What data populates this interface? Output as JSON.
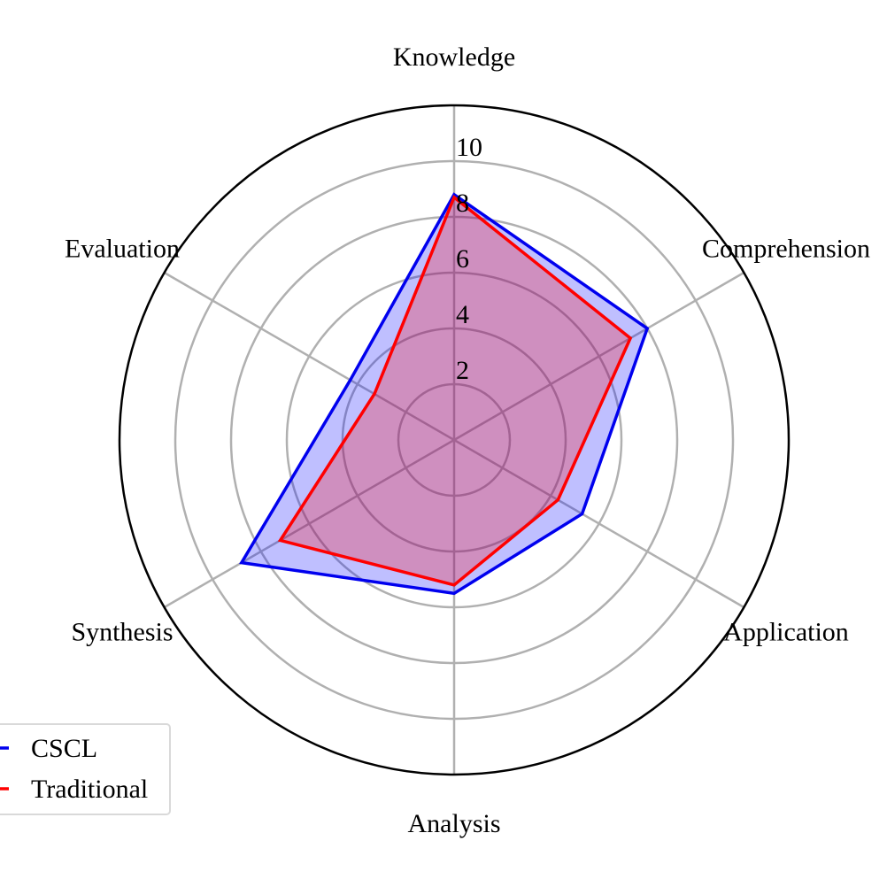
{
  "chart_data": {
    "type": "radar",
    "categories": [
      "Knowledge",
      "Comprehension",
      "Application",
      "Analysis",
      "Synthesis",
      "Evaluation"
    ],
    "series": [
      {
        "name": "CSCL",
        "values": [
          8.8,
          8.0,
          5.3,
          5.5,
          8.8,
          4.3
        ],
        "color": "#0000ee",
        "fill": "#0000ff",
        "fill_opacity": 0.25
      },
      {
        "name": "Traditional",
        "values": [
          8.7,
          7.3,
          4.3,
          5.2,
          7.2,
          3.3
        ],
        "color": "#ff0000",
        "fill": "#ff0000",
        "fill_opacity": 0.25
      }
    ],
    "r_ticks": [
      2,
      4,
      6,
      8,
      10
    ],
    "r_tick_labels": [
      "2",
      "4",
      "6",
      "8",
      "10"
    ],
    "rlim": [
      0,
      12
    ],
    "grid": true,
    "legend_position": "lower-left"
  }
}
